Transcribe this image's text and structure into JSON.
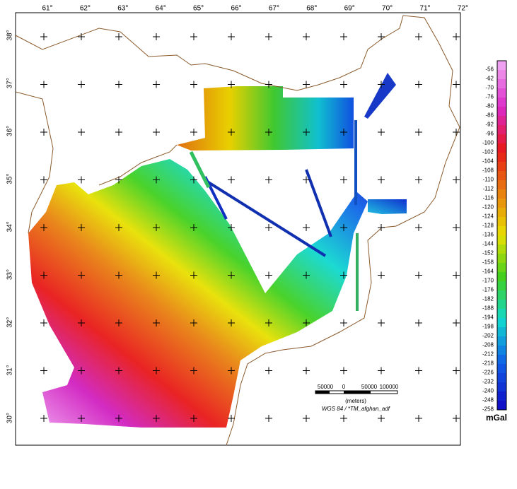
{
  "map": {
    "lon_labels": [
      "61°",
      "62°",
      "63°",
      "64°",
      "65°",
      "66°",
      "67°",
      "68°",
      "69°",
      "70°",
      "71°",
      "72°"
    ],
    "lat_labels": [
      "38°",
      "37°",
      "36°",
      "35°",
      "34°",
      "33°",
      "32°",
      "31°",
      "30°"
    ]
  },
  "scale_bar": {
    "ticks": [
      "50000",
      "0",
      "50000",
      "100000"
    ],
    "unit": "(meters)",
    "projection": "WGS 84 / *TM_afghan_adf"
  },
  "legend": {
    "labels": [
      "-56",
      "-62",
      "-70",
      "-76",
      "-80",
      "-86",
      "-92",
      "-96",
      "-100",
      "-102",
      "-104",
      "-108",
      "-110",
      "-112",
      "-116",
      "-120",
      "-124",
      "-128",
      "-136",
      "-144",
      "-152",
      "-158",
      "-164",
      "-170",
      "-176",
      "-182",
      "-188",
      "-194",
      "-198",
      "-202",
      "-208",
      "-212",
      "-218",
      "-226",
      "-232",
      "-240",
      "-248",
      "-258"
    ],
    "unit": "mGal"
  }
}
